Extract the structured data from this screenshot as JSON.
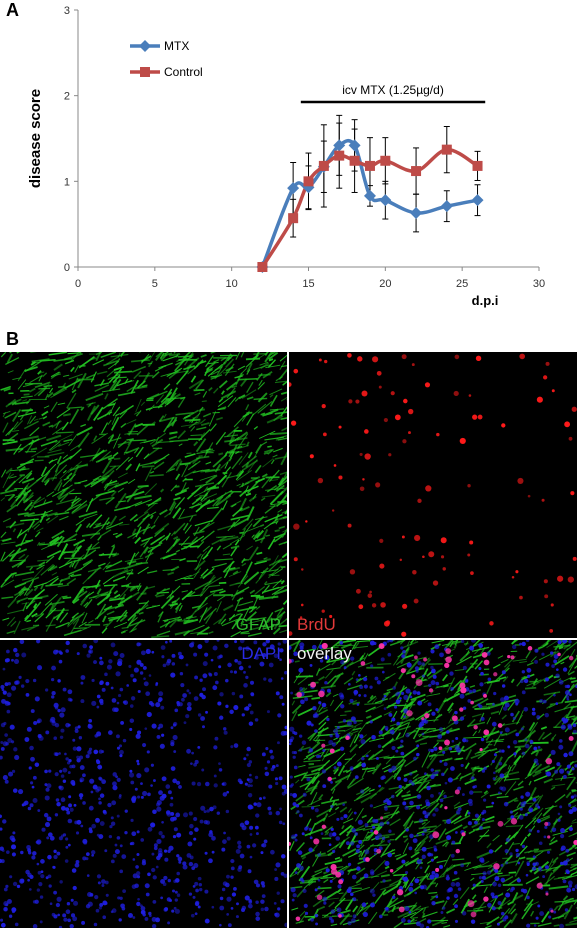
{
  "panels": {
    "a_label": "A",
    "b_label": "B"
  },
  "chart_data": {
    "type": "line",
    "ylabel": "disease score",
    "xlabel": "d.p.i",
    "xlim": [
      0,
      30
    ],
    "ylim": [
      0,
      3
    ],
    "x_ticks": [
      "0",
      "5",
      "10",
      "15",
      "20",
      "25",
      "30"
    ],
    "y_ticks": [
      "0",
      "1",
      "2",
      "3"
    ],
    "grid": false,
    "legend_position": "top-left",
    "annotation": {
      "text": "icv MTX (1.25µg/d)",
      "x_start": 14.5,
      "x_end": 26.5
    },
    "series": [
      {
        "name": "MTX",
        "color": "#4a7ebb",
        "marker": "diamond",
        "points": [
          {
            "x": 12,
            "y": 0.0,
            "err": 0.0
          },
          {
            "x": 14,
            "y": 0.92,
            "err": 0.3
          },
          {
            "x": 15,
            "y": 0.93,
            "err": 0.25
          },
          {
            "x": 16,
            "y": 1.17,
            "err": 0.3
          },
          {
            "x": 17,
            "y": 1.42,
            "err": 0.35
          },
          {
            "x": 18,
            "y": 1.42,
            "err": 0.3
          },
          {
            "x": 19,
            "y": 0.83,
            "err": 0.12
          },
          {
            "x": 20,
            "y": 0.78,
            "err": 0.22
          },
          {
            "x": 22,
            "y": 0.63,
            "err": 0.22
          },
          {
            "x": 24,
            "y": 0.71,
            "err": 0.18
          },
          {
            "x": 26,
            "y": 0.78,
            "err": 0.18
          }
        ]
      },
      {
        "name": "Control",
        "color": "#be4b48",
        "marker": "square",
        "points": [
          {
            "x": 12,
            "y": 0.0,
            "err": 0.0
          },
          {
            "x": 14,
            "y": 0.57,
            "err": 0.22
          },
          {
            "x": 15,
            "y": 1.0,
            "err": 0.33
          },
          {
            "x": 16,
            "y": 1.18,
            "err": 0.48
          },
          {
            "x": 17,
            "y": 1.3,
            "err": 0.38
          },
          {
            "x": 18,
            "y": 1.24,
            "err": 0.37
          },
          {
            "x": 19,
            "y": 1.18,
            "err": 0.33
          },
          {
            "x": 20,
            "y": 1.24,
            "err": 0.27
          },
          {
            "x": 22,
            "y": 1.12,
            "err": 0.27
          },
          {
            "x": 24,
            "y": 1.37,
            "err": 0.27
          },
          {
            "x": 26,
            "y": 1.18,
            "err": 0.17
          }
        ]
      }
    ]
  },
  "micrographs": [
    {
      "id": "gfap",
      "labels": [
        {
          "text": "GFAP",
          "color": "#2fbf2f"
        }
      ]
    },
    {
      "id": "brdu",
      "labels": [
        {
          "text": "BrdU",
          "color": "#e23a3a"
        }
      ]
    },
    {
      "id": "dapi",
      "labels": [
        {
          "text": "DAPI",
          "color": "#2a2ae6"
        }
      ]
    },
    {
      "id": "overlay",
      "labels": [
        {
          "text": "overlay",
          "color": "#f2f2f2"
        }
      ]
    }
  ]
}
